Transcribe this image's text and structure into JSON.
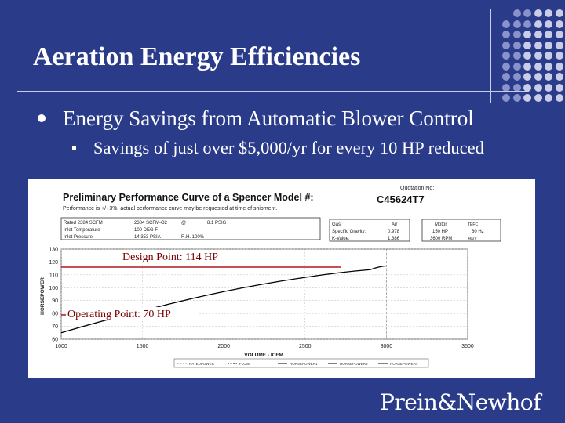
{
  "slide": {
    "title": "Aeration Energy Efficiencies",
    "bullet_level1": "Energy Savings from Automatic Blower Control",
    "bullet_level2": "Savings of just over $5,000/yr for every 10 HP reduced",
    "logo_text": "Prein&Newhof"
  },
  "colors": {
    "background": "#2a3b89",
    "accent_dots_light": "#c9cde8",
    "accent_dots_mid": "#8a92cc",
    "curve": "#000000",
    "annotation_line": "#b01818",
    "annotation_text": "#7a0000"
  },
  "chart": {
    "header_title": "Preliminary Performance Curve of a Spencer Model #:",
    "header_subtitle": "Performance is +/- 3%, actual performance curve may be requested at time of shipment.",
    "quotation_label": "Quotation No:",
    "quotation_number": "C45624T7",
    "rated_label": "Rated",
    "rated_value": "2384 SCFM",
    "rated_value2": "2384 SCFM-O2",
    "at_symbol": "@",
    "pressure_psig": "8.1 PSIG",
    "inlet_temp_label": "Inlet Temperature",
    "inlet_temp_value": "100 DEG F",
    "inlet_pressure_label": "Inlet Pressure",
    "inlet_pressure_value": "14.353 PSIA",
    "rh_label": "R.H. 100%",
    "gas_label": "Gas:",
    "gas_value": "Air",
    "specific_gravity_label": "Specific Gravity:",
    "specific_gravity_value": "0.978",
    "k_value_label": "K-Value:",
    "k_value_value": "1.386",
    "motor_label": "Motor",
    "motor_hp": "150 HP",
    "motor_rpm": "3600 RPM",
    "motor_tefc": "TEFC",
    "motor_hz": "60 Hz",
    "motor_volts": "460V",
    "y_axis_label": "HORSEPOWER",
    "x_axis_label": "VOLUME - ICFM",
    "y_ticks": [
      "130",
      "120",
      "110",
      "100",
      "90",
      "80",
      "70",
      "60"
    ],
    "x_ticks": [
      "1000",
      "1500",
      "2000",
      "2500",
      "3000",
      "3500"
    ],
    "legend": [
      "RATEDPOWER",
      "FLOW",
      "HORSEPOWER1",
      "HORSEPOWER3",
      "HORSEPOWER4"
    ],
    "design_point_label": "Design Point: 114 HP",
    "operating_point_label": "Operating Point: 70 HP"
  },
  "chart_data": {
    "type": "line",
    "xlabel": "VOLUME - ICFM",
    "ylabel": "HORSEPOWER",
    "xlim": [
      1000,
      3500
    ],
    "ylim": [
      60,
      130
    ],
    "series": [
      {
        "x": [
          1000,
          1500,
          2000,
          2500,
          2900,
          3000
        ],
        "values": [
          65,
          82,
          97,
          108,
          114,
          117
        ]
      }
    ]
  }
}
